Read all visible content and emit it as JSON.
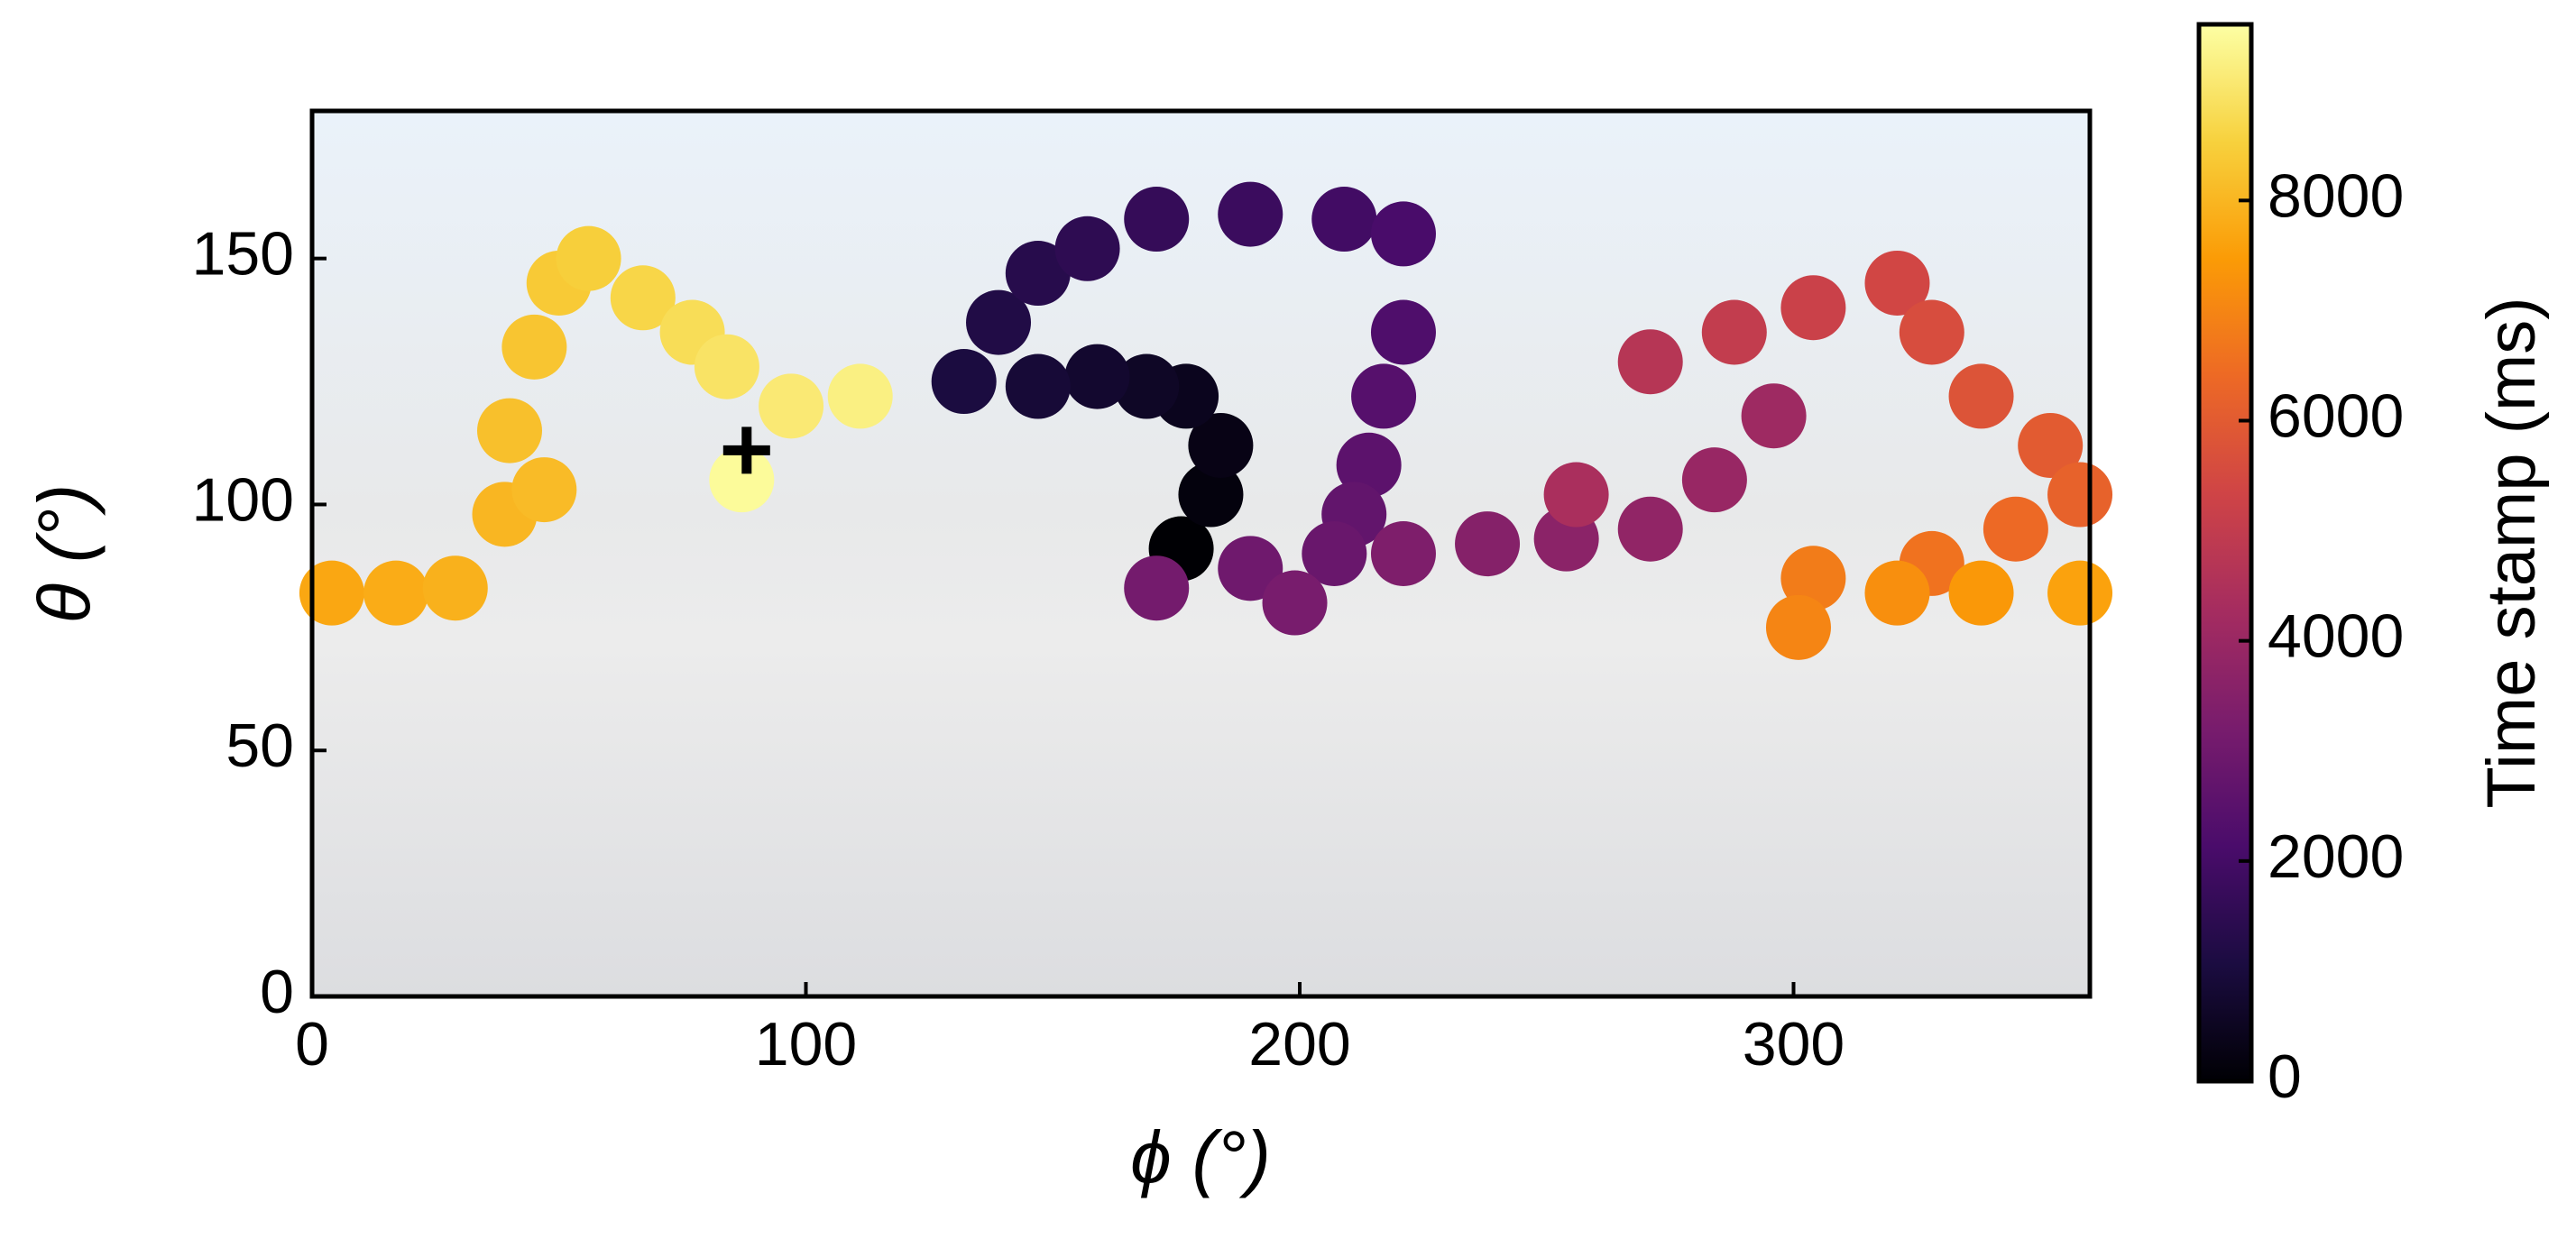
{
  "chart_data": {
    "type": "scatter",
    "xlabel": "ϕ (°)",
    "ylabel": "θ (°)",
    "xlim": [
      0,
      360
    ],
    "xticks": [
      0,
      100,
      200,
      300
    ],
    "ylim": [
      0,
      180
    ],
    "yticks": [
      0,
      50,
      100,
      150
    ],
    "x": [
      176,
      182,
      184,
      177,
      169,
      159,
      147,
      132,
      139,
      147,
      157,
      171,
      190,
      209,
      221,
      221,
      217,
      214,
      211,
      207,
      190,
      171,
      199,
      221,
      238,
      254,
      271,
      284,
      296,
      256,
      271,
      288,
      304,
      321,
      328,
      338,
      352,
      358,
      345,
      328,
      304,
      301,
      321,
      338,
      358,
      4,
      17,
      29,
      39,
      47,
      40,
      45,
      50,
      56,
      67,
      77,
      84,
      97,
      111,
      87
    ],
    "values": [
      91,
      102,
      112,
      122,
      124,
      126,
      124,
      125,
      137,
      147,
      152,
      158,
      159,
      158,
      155,
      135,
      122,
      108,
      98,
      90,
      87,
      83,
      80,
      90,
      92,
      93,
      95,
      105,
      118,
      102,
      129,
      135,
      140,
      145,
      135,
      122,
      112,
      102,
      95,
      88,
      85,
      75,
      82,
      82,
      82,
      82,
      82,
      83,
      98,
      103,
      115,
      132,
      145,
      150,
      142,
      135,
      128,
      120,
      122,
      105
    ],
    "time": [
      0,
      150,
      300,
      450,
      600,
      750,
      900,
      1050,
      1200,
      1350,
      1500,
      1650,
      1800,
      1950,
      2100,
      2250,
      2400,
      2550,
      2700,
      2850,
      3000,
      3100,
      3200,
      3350,
      3500,
      3650,
      3800,
      3950,
      4100,
      4400,
      4700,
      5000,
      5200,
      5400,
      5600,
      5800,
      6000,
      6200,
      6400,
      6600,
      6800,
      7000,
      7200,
      7400,
      7600,
      7700,
      7800,
      7900,
      8000,
      8100,
      8200,
      8300,
      8400,
      8500,
      8650,
      8800,
      8950,
      9100,
      9250,
      9500
    ],
    "colormap": "inferno",
    "colorbar_label": "Time stamp (ms)",
    "clim": [
      0,
      9600
    ],
    "cticks": [
      0,
      2000,
      4000,
      6000,
      8000
    ],
    "marker_x": 88,
    "marker_y": 111
  }
}
